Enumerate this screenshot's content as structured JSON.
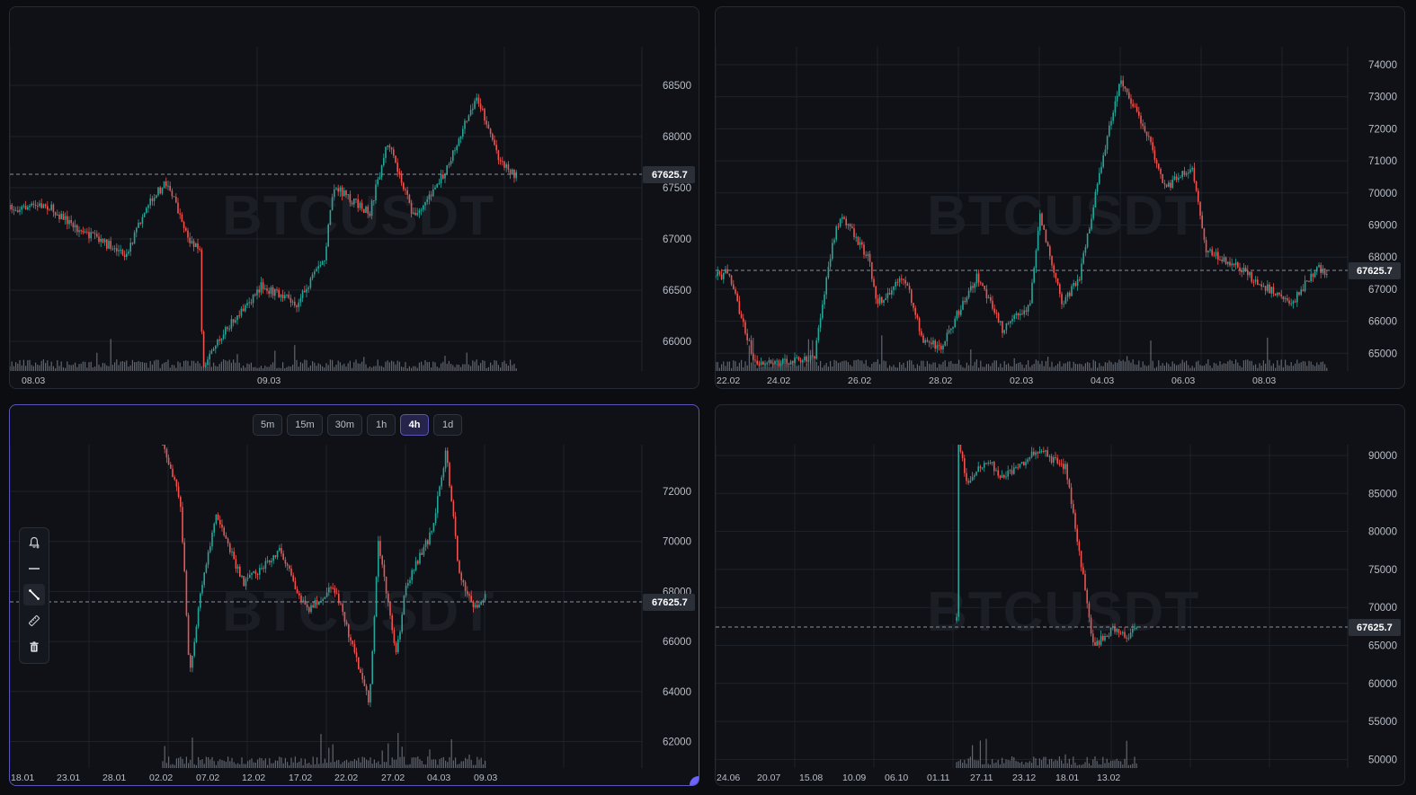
{
  "watermark": "BTCUSDT",
  "current_price": "67625.7",
  "colors": {
    "up": "#26a69a",
    "down": "#ef5350",
    "volume": "#7d828c",
    "accent": "#6c63ff",
    "background": "#0f1116"
  },
  "panels": [
    {
      "id": "top-left",
      "y_ticks": [
        "68500",
        "68000",
        "67500",
        "67000",
        "66500",
        "66000"
      ],
      "x_ticks": [
        "08.03",
        "09.03"
      ]
    },
    {
      "id": "top-right",
      "y_ticks": [
        "74000",
        "73000",
        "72000",
        "71000",
        "70000",
        "69000",
        "68000",
        "67000",
        "66000",
        "65000"
      ],
      "x_ticks": [
        "22.02",
        "24.02",
        "26.02",
        "28.02",
        "02.03",
        "04.03",
        "06.03",
        "08.03"
      ]
    },
    {
      "id": "bottom-left",
      "y_ticks": [
        "72000",
        "70000",
        "68000",
        "66000",
        "64000",
        "62000"
      ],
      "x_ticks": [
        "18.01",
        "23.01",
        "28.01",
        "02.02",
        "07.02",
        "12.02",
        "17.02",
        "22.02",
        "27.02",
        "04.03",
        "09.03"
      ]
    },
    {
      "id": "bottom-right",
      "y_ticks": [
        "90000",
        "85000",
        "80000",
        "75000",
        "70000",
        "65000",
        "60000",
        "55000",
        "50000"
      ],
      "x_ticks": [
        "24.06",
        "20.07",
        "15.08",
        "10.09",
        "06.10",
        "01.11",
        "27.11",
        "23.12",
        "18.01",
        "13.02"
      ]
    }
  ],
  "timeframes": [
    {
      "label": "5m",
      "active": false
    },
    {
      "label": "15m",
      "active": false
    },
    {
      "label": "30m",
      "active": false
    },
    {
      "label": "1h",
      "active": false
    },
    {
      "label": "4h",
      "active": true
    },
    {
      "label": "1d",
      "active": false
    }
  ],
  "tools": [
    {
      "name": "alert-bell-icon"
    },
    {
      "name": "horizontal-line-icon"
    },
    {
      "name": "trend-line-icon"
    },
    {
      "name": "ruler-icon"
    },
    {
      "name": "trash-icon"
    }
  ]
}
